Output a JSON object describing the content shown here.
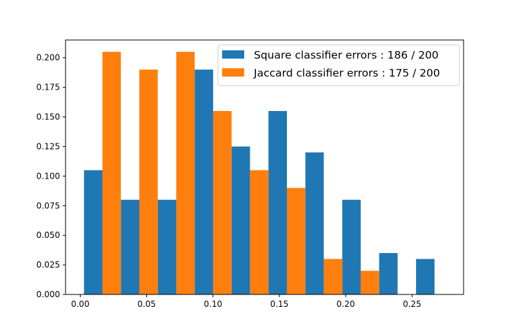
{
  "chart_data": {
    "type": "bar",
    "title": "",
    "xlabel": "",
    "ylabel": "",
    "xlim": [
      -0.0111,
      0.2888
    ],
    "ylim": [
      0,
      0.215
    ],
    "grid": false,
    "legend_position": "top-right",
    "x_ticks": [
      {
        "value": 0.0,
        "label": "0.00"
      },
      {
        "value": 0.05,
        "label": "0.05"
      },
      {
        "value": 0.1,
        "label": "0.10"
      },
      {
        "value": 0.15,
        "label": "0.15"
      },
      {
        "value": 0.2,
        "label": "0.20"
      },
      {
        "value": 0.25,
        "label": "0.25"
      }
    ],
    "y_ticks": [
      {
        "value": 0.0,
        "label": "0.000"
      },
      {
        "value": 0.025,
        "label": "0.025"
      },
      {
        "value": 0.05,
        "label": "0.050"
      },
      {
        "value": 0.075,
        "label": "0.075"
      },
      {
        "value": 0.1,
        "label": "0.100"
      },
      {
        "value": 0.125,
        "label": "0.125"
      },
      {
        "value": 0.15,
        "label": "0.150"
      },
      {
        "value": 0.175,
        "label": "0.175"
      },
      {
        "value": 0.2,
        "label": "0.200"
      }
    ],
    "bin_edges": [
      0.0028,
      0.0306,
      0.0584,
      0.0862,
      0.114,
      0.1418,
      0.1696,
      0.1974,
      0.2252,
      0.253,
      0.2808
    ],
    "series": [
      {
        "name": "Square classifier errors : 186 / 200",
        "color": "#1f77b4",
        "values": [
          0.105,
          0.08,
          0.08,
          0.19,
          0.125,
          0.155,
          0.12,
          0.08,
          0.035,
          0.03
        ]
      },
      {
        "name": "Jaccard classifier errors : 175 / 200",
        "color": "#ff7f0e",
        "values": [
          0.205,
          0.19,
          0.205,
          0.155,
          0.105,
          0.09,
          0.03,
          0.02,
          0.0,
          0.0
        ]
      }
    ]
  }
}
